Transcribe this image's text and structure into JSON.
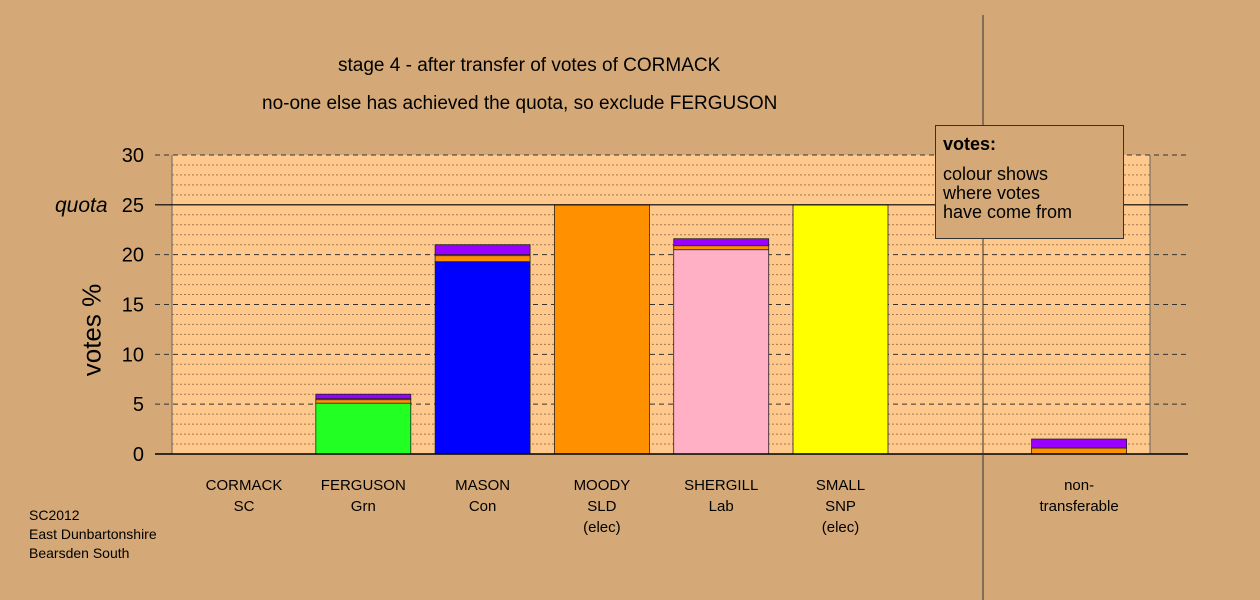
{
  "titles": {
    "line1": "stage 4 - after transfer of votes of CORMACK",
    "line2": "no-one else has achieved the quota, so exclude FERGUSON"
  },
  "legend": {
    "heading": "votes:",
    "text": "colour shows\nwhere votes\nhave come from"
  },
  "footer": {
    "line1": "SC2012",
    "line2": "East Dunbartonshire",
    "line3": "Bearsden South"
  },
  "colors": {
    "background": "#d4a977",
    "plot_background": "#ffc98e",
    "Grn": "#22ff22",
    "Con": "#0000ff",
    "SLD": "#ff9100",
    "Lab": "#ffb0c4",
    "SNP": "#ffff00",
    "SC": "#9900ff"
  },
  "chart_data": {
    "type": "bar",
    "stacked": true,
    "ylabel": "votes %",
    "ylim": [
      0,
      30
    ],
    "yticks": [
      0,
      5,
      10,
      15,
      20,
      25,
      30
    ],
    "grid": true,
    "quota": {
      "label": "quota",
      "value": 25
    },
    "categories": [
      {
        "name": "CORMACK",
        "party": "SC",
        "note": ""
      },
      {
        "name": "FERGUSON",
        "party": "Grn",
        "note": ""
      },
      {
        "name": "MASON",
        "party": "Con",
        "note": ""
      },
      {
        "name": "MOODY",
        "party": "SLD",
        "note": "(elec)"
      },
      {
        "name": "SHERGILL",
        "party": "Lab",
        "note": ""
      },
      {
        "name": "SMALL",
        "party": "SNP",
        "note": "(elec)"
      },
      {
        "name": "",
        "party": "",
        "note": ""
      },
      {
        "name": "non-",
        "party": "transferable",
        "note": ""
      }
    ],
    "stacks": [
      [],
      [
        {
          "from": "Grn",
          "value": 5.1
        },
        {
          "from": "SLD",
          "value": 0.35
        },
        {
          "from": "Lab",
          "value": 0.1
        },
        {
          "from": "SC",
          "value": 0.45
        }
      ],
      [
        {
          "from": "Con",
          "value": 19.3
        },
        {
          "from": "SLD",
          "value": 0.6
        },
        {
          "from": "Lab",
          "value": 0.1
        },
        {
          "from": "SC",
          "value": 1.0
        }
      ],
      [
        {
          "from": "SLD",
          "value": 25.0
        }
      ],
      [
        {
          "from": "Lab",
          "value": 20.5
        },
        {
          "from": "SLD",
          "value": 0.4
        },
        {
          "from": "SC",
          "value": 0.7
        }
      ],
      [
        {
          "from": "SNP",
          "value": 25.0
        }
      ],
      [],
      [
        {
          "from": "SLD",
          "value": 0.6
        },
        {
          "from": "SC",
          "value": 0.9
        }
      ]
    ]
  }
}
